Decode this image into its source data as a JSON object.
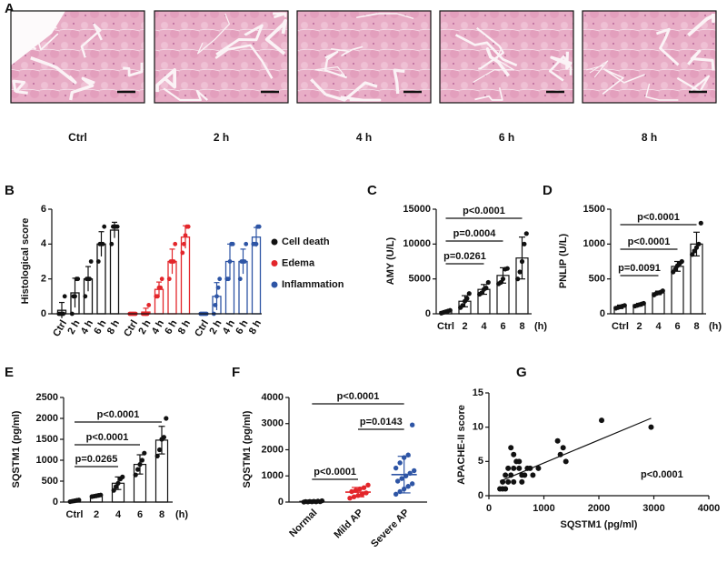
{
  "panel_a": {
    "label": "A",
    "captions": [
      "Ctrl",
      "2 h",
      "4 h",
      "6 h",
      "8 h"
    ]
  },
  "chart_data": [
    {
      "type": "grouped_bar",
      "panel": "B",
      "ylabel": "Histological score",
      "categories": [
        "Ctrl",
        "2 h",
        "4 h",
        "6 h",
        "8 h"
      ],
      "ylim": [
        0,
        6
      ],
      "yticks": [
        0,
        2,
        4,
        6
      ],
      "series": [
        {
          "name": "Cell death",
          "color": "#111111",
          "values": [
            0.2,
            1.2,
            2.0,
            4.0,
            4.8
          ],
          "errors": [
            0.45,
            0.84,
            0.71,
            0.71,
            0.45
          ],
          "points": [
            [
              0,
              0,
              0,
              0,
              1
            ],
            [
              0,
              1,
              1,
              2,
              2
            ],
            [
              1,
              2,
              2,
              2,
              3
            ],
            [
              3,
              4,
              4,
              4,
              5
            ],
            [
              4,
              5,
              5,
              5,
              5
            ]
          ]
        },
        {
          "name": "Edema",
          "color": "#e3262b",
          "values": [
            0,
            0.1,
            1.4,
            3.0,
            4.4
          ],
          "errors": [
            0,
            0.22,
            0.42,
            0.71,
            0.65
          ],
          "points": [
            [
              0,
              0,
              0,
              0,
              0
            ],
            [
              0,
              0,
              0,
              0,
              0.5
            ],
            [
              1,
              1,
              1.5,
              1.5,
              2
            ],
            [
              2,
              3,
              3,
              3,
              4
            ],
            [
              3.5,
              4,
              4.5,
              5,
              5
            ]
          ]
        },
        {
          "name": "Inflammation",
          "color": "#2e55a5",
          "values": [
            0,
            1.0,
            3.0,
            3.0,
            4.4
          ],
          "errors": [
            0,
            0.79,
            1.0,
            0.71,
            0.55
          ],
          "points": [
            [
              0,
              0,
              0,
              0,
              0
            ],
            [
              0,
              0.5,
              1,
              1.5,
              2
            ],
            [
              2,
              2,
              3,
              4,
              4
            ],
            [
              2,
              3,
              3,
              3,
              4
            ],
            [
              4,
              4,
              4,
              5,
              5
            ]
          ]
        }
      ]
    },
    {
      "type": "bar_dots",
      "panel": "C",
      "ylabel": "AMY (U/L)",
      "xlabel": "(h)",
      "categories": [
        "Ctrl",
        "2",
        "4",
        "6",
        "8"
      ],
      "ylim": [
        0,
        15000
      ],
      "yticks": [
        0,
        5000,
        10000,
        15000
      ],
      "values": [
        300,
        1800,
        3500,
        5500,
        8000
      ],
      "errors": [
        150,
        800,
        700,
        1100,
        3000
      ],
      "points": [
        [
          100,
          200,
          300,
          400,
          500
        ],
        [
          900,
          1200,
          1800,
          2200,
          2900
        ],
        [
          2800,
          3000,
          3500,
          3700,
          4500
        ],
        [
          4300,
          4500,
          5000,
          6400,
          6500
        ],
        [
          5000,
          6000,
          7500,
          10000,
          11500
        ]
      ],
      "comparisons": [
        "p=0.0261",
        "p=0.0004",
        "p<0.0001"
      ],
      "color": "#111111"
    },
    {
      "type": "bar_dots",
      "panel": "D",
      "ylabel": "PNLIP (U/L)",
      "xlabel": "(h)",
      "categories": [
        "Ctrl",
        "2",
        "4",
        "6",
        "8"
      ],
      "ylim": [
        0,
        1500
      ],
      "yticks": [
        0,
        500,
        1000,
        1500
      ],
      "values": [
        100,
        130,
        300,
        680,
        1000
      ],
      "errors": [
        25,
        20,
        25,
        70,
        170
      ],
      "points": [
        [
          80,
          90,
          100,
          110,
          120
        ],
        [
          110,
          120,
          130,
          140,
          150
        ],
        [
          270,
          290,
          300,
          310,
          330
        ],
        [
          600,
          640,
          690,
          720,
          750
        ],
        [
          850,
          900,
          950,
          1000,
          1300
        ]
      ],
      "comparisons": [
        "p=0.0091",
        "p<0.0001",
        "p<0.0001"
      ],
      "color": "#111111"
    },
    {
      "type": "bar_dots",
      "panel": "E",
      "ylabel": "SQSTM1 (pg/ml)",
      "xlabel": "(h)",
      "categories": [
        "Ctrl",
        "2",
        "4",
        "6",
        "8"
      ],
      "ylim": [
        0,
        2500
      ],
      "yticks": [
        0,
        500,
        1000,
        1500,
        2000,
        2500
      ],
      "values": [
        30,
        150,
        450,
        900,
        1480
      ],
      "errors": [
        20,
        20,
        150,
        230,
        330
      ],
      "points": [
        [
          10,
          20,
          30,
          40,
          50
        ],
        [
          130,
          140,
          150,
          160,
          170
        ],
        [
          280,
          370,
          450,
          550,
          600
        ],
        [
          650,
          780,
          900,
          1000,
          1170
        ],
        [
          1100,
          1250,
          1500,
          1550,
          2000
        ]
      ],
      "comparisons": [
        "p=0.0265",
        "p<0.0001",
        "p<0.0001"
      ],
      "color": "#111111"
    },
    {
      "type": "dot_plot",
      "panel": "F",
      "ylabel": "SQSTM1 (pg/ml)",
      "categories": [
        "Normal",
        "Mild AP",
        "Severe AP"
      ],
      "colors": [
        "#111111",
        "#e3262b",
        "#2e55a5"
      ],
      "ylim": [
        0,
        4000
      ],
      "yticks": [
        0,
        1000,
        2000,
        3000,
        4000
      ],
      "values": [
        20,
        380,
        1050
      ],
      "errors": [
        25,
        180,
        700
      ],
      "points": [
        [
          0,
          5,
          10,
          10,
          15,
          20,
          25,
          30,
          35,
          50
        ],
        [
          150,
          200,
          250,
          300,
          350,
          400,
          450,
          500,
          550,
          650
        ],
        [
          300,
          400,
          500,
          600,
          700,
          800,
          900,
          1000,
          1100,
          1200,
          1300,
          1500,
          1700,
          1800,
          2950
        ]
      ],
      "comparisons": [
        "p<0.0001",
        "p=0.0143",
        "p<0.0001"
      ]
    },
    {
      "type": "scatter",
      "panel": "G",
      "ylabel": "APACHE-II score",
      "xlabel": "SQSTM1 (pg/ml)",
      "xlim": [
        0,
        4000
      ],
      "xticks": [
        0,
        1000,
        2000,
        3000,
        4000
      ],
      "ylim": [
        0,
        15
      ],
      "yticks": [
        0,
        5,
        10,
        15
      ],
      "x": [
        200,
        250,
        300,
        250,
        300,
        350,
        400,
        450,
        400,
        450,
        500,
        550,
        600,
        650,
        700,
        750,
        800,
        550,
        350,
        900,
        1250,
        1300,
        1350,
        1400,
        2050,
        2950,
        600,
        450
      ],
      "y": [
        1,
        1,
        1,
        2,
        3,
        2,
        3,
        4,
        7,
        6,
        5,
        4,
        3,
        3,
        4,
        4,
        3,
        5,
        4,
        4,
        8,
        6,
        7,
        5,
        11,
        10,
        2,
        2
      ],
      "fit": {
        "x": [
          200,
          2950
        ],
        "y": [
          2.1,
          11.3
        ]
      },
      "annotation": "p<0.0001",
      "color": "#111111"
    }
  ]
}
